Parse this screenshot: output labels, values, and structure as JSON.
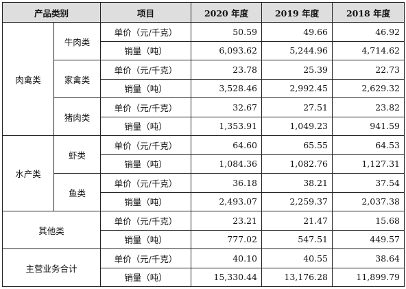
{
  "headers": {
    "category": "产品类别",
    "item": "项目",
    "y2020": "2020 年度",
    "y2019": "2019 年度",
    "y2018": "2018 年度"
  },
  "labels": {
    "price": "单价（元/千克）",
    "volume": "销量（吨）"
  },
  "groups": {
    "meat": "肉禽类",
    "aquatic": "水产类"
  },
  "rows": [
    {
      "name": "牛肉类",
      "price": [
        "50.59",
        "49.66",
        "46.92"
      ],
      "volume": [
        "6,093.62",
        "5,244.96",
        "4,714.62"
      ]
    },
    {
      "name": "家禽类",
      "price": [
        "23.78",
        "25.39",
        "22.73"
      ],
      "volume": [
        "3,528.46",
        "2,992.45",
        "2,629.32"
      ]
    },
    {
      "name": "猪肉类",
      "price": [
        "32.67",
        "27.51",
        "23.82"
      ],
      "volume": [
        "1,353.91",
        "1,049.23",
        "941.59"
      ]
    },
    {
      "name": "虾类",
      "price": [
        "64.60",
        "65.55",
        "64.53"
      ],
      "volume": [
        "1,084.36",
        "1,082.76",
        "1,127.31"
      ]
    },
    {
      "name": "鱼类",
      "price": [
        "36.18",
        "38.21",
        "37.54"
      ],
      "volume": [
        "2,493.07",
        "2,259.37",
        "2,037.38"
      ]
    },
    {
      "name": "其他类",
      "price": [
        "23.21",
        "21.47",
        "15.68"
      ],
      "volume": [
        "777.02",
        "547.51",
        "449.57"
      ]
    },
    {
      "name": "主营业务合计",
      "price": [
        "40.10",
        "40.55",
        "38.64"
      ],
      "volume": [
        "15,330.44",
        "13,176.28",
        "11,899.79"
      ]
    }
  ]
}
